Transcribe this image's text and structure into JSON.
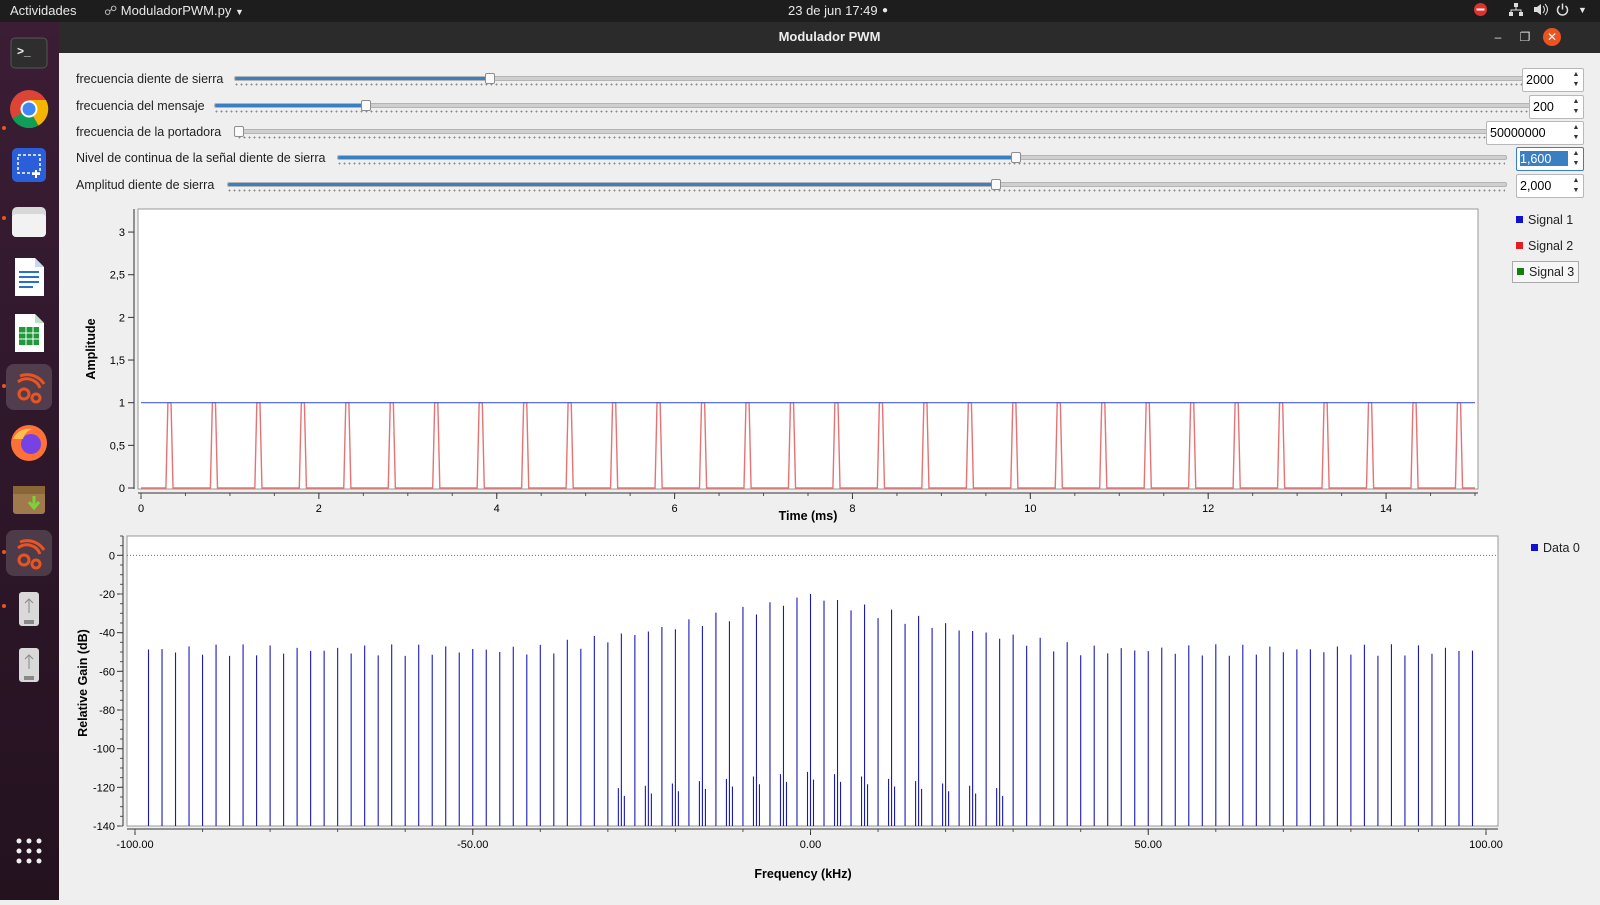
{
  "topbar": {
    "activities": "Actividades",
    "app_name": "ModuladorPWM.py",
    "datetime": "23 de jun  17:49"
  },
  "window": {
    "title": "Modulador PWM"
  },
  "controls": [
    {
      "label": "frecuencia diente de sierra",
      "value": "2000",
      "fraction": 0.19
    },
    {
      "label": "frecuencia del mensaje",
      "value": "200",
      "fraction": 0.11
    },
    {
      "label": "frecuencia de la portadora",
      "value": "50000000",
      "fraction": 0.0
    },
    {
      "label": "Nivel de continua de la señal diente de sierra",
      "value": "1,600",
      "fraction": 0.58
    },
    {
      "label": "Amplitud diente de sierra",
      "value": "2,000",
      "fraction": 0.6
    }
  ],
  "time_plot": {
    "xlabel": "Time (ms)",
    "ylabel": "Amplitude",
    "xticks": [
      "0",
      "2",
      "4",
      "6",
      "8",
      "10",
      "12",
      "14"
    ],
    "yticks": [
      "0",
      "0,5",
      "1",
      "1,5",
      "2",
      "2,5",
      "3"
    ],
    "legend": [
      {
        "name": "Signal 1",
        "color": "#1010d0"
      },
      {
        "name": "Signal 2",
        "color": "#e02020"
      },
      {
        "name": "Signal 3",
        "color": "#108010"
      }
    ]
  },
  "freq_plot": {
    "xlabel": "Frequency (kHz)",
    "ylabel": "Relative Gain (dB)",
    "xticks": [
      "-100.00",
      "-50.00",
      "0.00",
      "50.00",
      "100.00"
    ],
    "yticks": [
      "0",
      "-20",
      "-40",
      "-60",
      "-80",
      "-100",
      "-120",
      "-140"
    ],
    "legend": [
      {
        "name": "Data 0",
        "color": "#1010d0"
      }
    ]
  },
  "chart_data": [
    {
      "type": "line",
      "xlabel": "Time (ms)",
      "ylabel": "Amplitude",
      "xlim": [
        0,
        15
      ],
      "ylim": [
        0,
        3.2
      ],
      "series": [
        {
          "name": "Signal 1",
          "description": "constant",
          "value": 1.0
        },
        {
          "name": "Signal 2",
          "description": "pulse train 0 to 1, period ms",
          "period": 0.5,
          "pulse_starts_first": 0.28,
          "pulse_width": 0.08,
          "low": 0,
          "high": 1
        }
      ]
    },
    {
      "type": "line",
      "xlabel": "Frequency (kHz)",
      "ylabel": "Relative Gain (dB)",
      "xlim": [
        -100,
        100
      ],
      "ylim": [
        -140,
        10
      ],
      "series": [
        {
          "name": "Data 0",
          "description": "spectral lines, harmonics spaced 2 kHz with sidebands",
          "peak_db_center": -23,
          "peak_db_edges": -52,
          "floor_db": -140
        }
      ]
    }
  ]
}
